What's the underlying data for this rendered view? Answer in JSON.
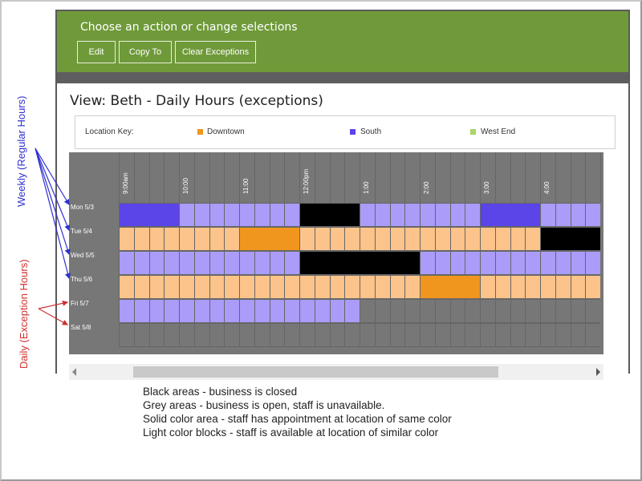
{
  "header": {
    "title": "Choose an action or change selections",
    "buttons": [
      {
        "label": "Edit"
      },
      {
        "label": "Copy To"
      },
      {
        "label": "Clear Exceptions"
      }
    ]
  },
  "view_title": "View: Beth - Daily Hours (exceptions)",
  "location_key": {
    "label": "Location Key:",
    "items": [
      {
        "name": "Downtown",
        "color": "#f0961e"
      },
      {
        "name": "South",
        "color": "#5b44e8"
      },
      {
        "name": "West End",
        "color": "#a9d46a"
      }
    ]
  },
  "schedule": {
    "time_labels": [
      "9:00am",
      "10:00",
      "11:00",
      "12:00pm",
      "1:00",
      "2:00",
      "3:00",
      "4:00"
    ],
    "days": [
      {
        "label": "Mon 5/3",
        "cells": "SSSSLLLLLLLLKKKKLLLLLLLLSSSSLLLL"
      },
      {
        "label": "Tue 5/4",
        "cells": "ooooooooDDDDooooooooooooooooKKKK"
      },
      {
        "label": "Wed 5/5",
        "cells": "LLLLLLLLLLLLKKKKKKKKLLLLLLLLLLLL"
      },
      {
        "label": "Thu 5/6",
        "cells": "ooooooooooooooooooooDDDDoooooooo"
      },
      {
        "label": "Fri 5/7",
        "cells": "LLLLLLLLLLLLLLLLGGGGGGGGGGGGGGGG"
      },
      {
        "label": "Sat 5/8",
        "cells": "GGGGGGGGGGGGGGGGGGGGGGGGGGGGGGGG"
      }
    ],
    "cell_colors": {
      "S": "#5b44e8",
      "L": "#aa9cf8",
      "D": "#f0961e",
      "o": "#fcc38a",
      "K": "#000000",
      "G": "#777777"
    }
  },
  "annotations": {
    "weekly": "Weekly (Regular Hours)",
    "daily": "Daily (Exception Hours)",
    "weekly_color": "#3030d0",
    "daily_color": "#d03030"
  },
  "notes": [
    "Black areas - business is closed",
    "Grey areas - business is open, staff is unavailable.",
    "Solid color area - staff has appointment at location of same color",
    "Light color blocks - staff is available at location of similar color"
  ]
}
